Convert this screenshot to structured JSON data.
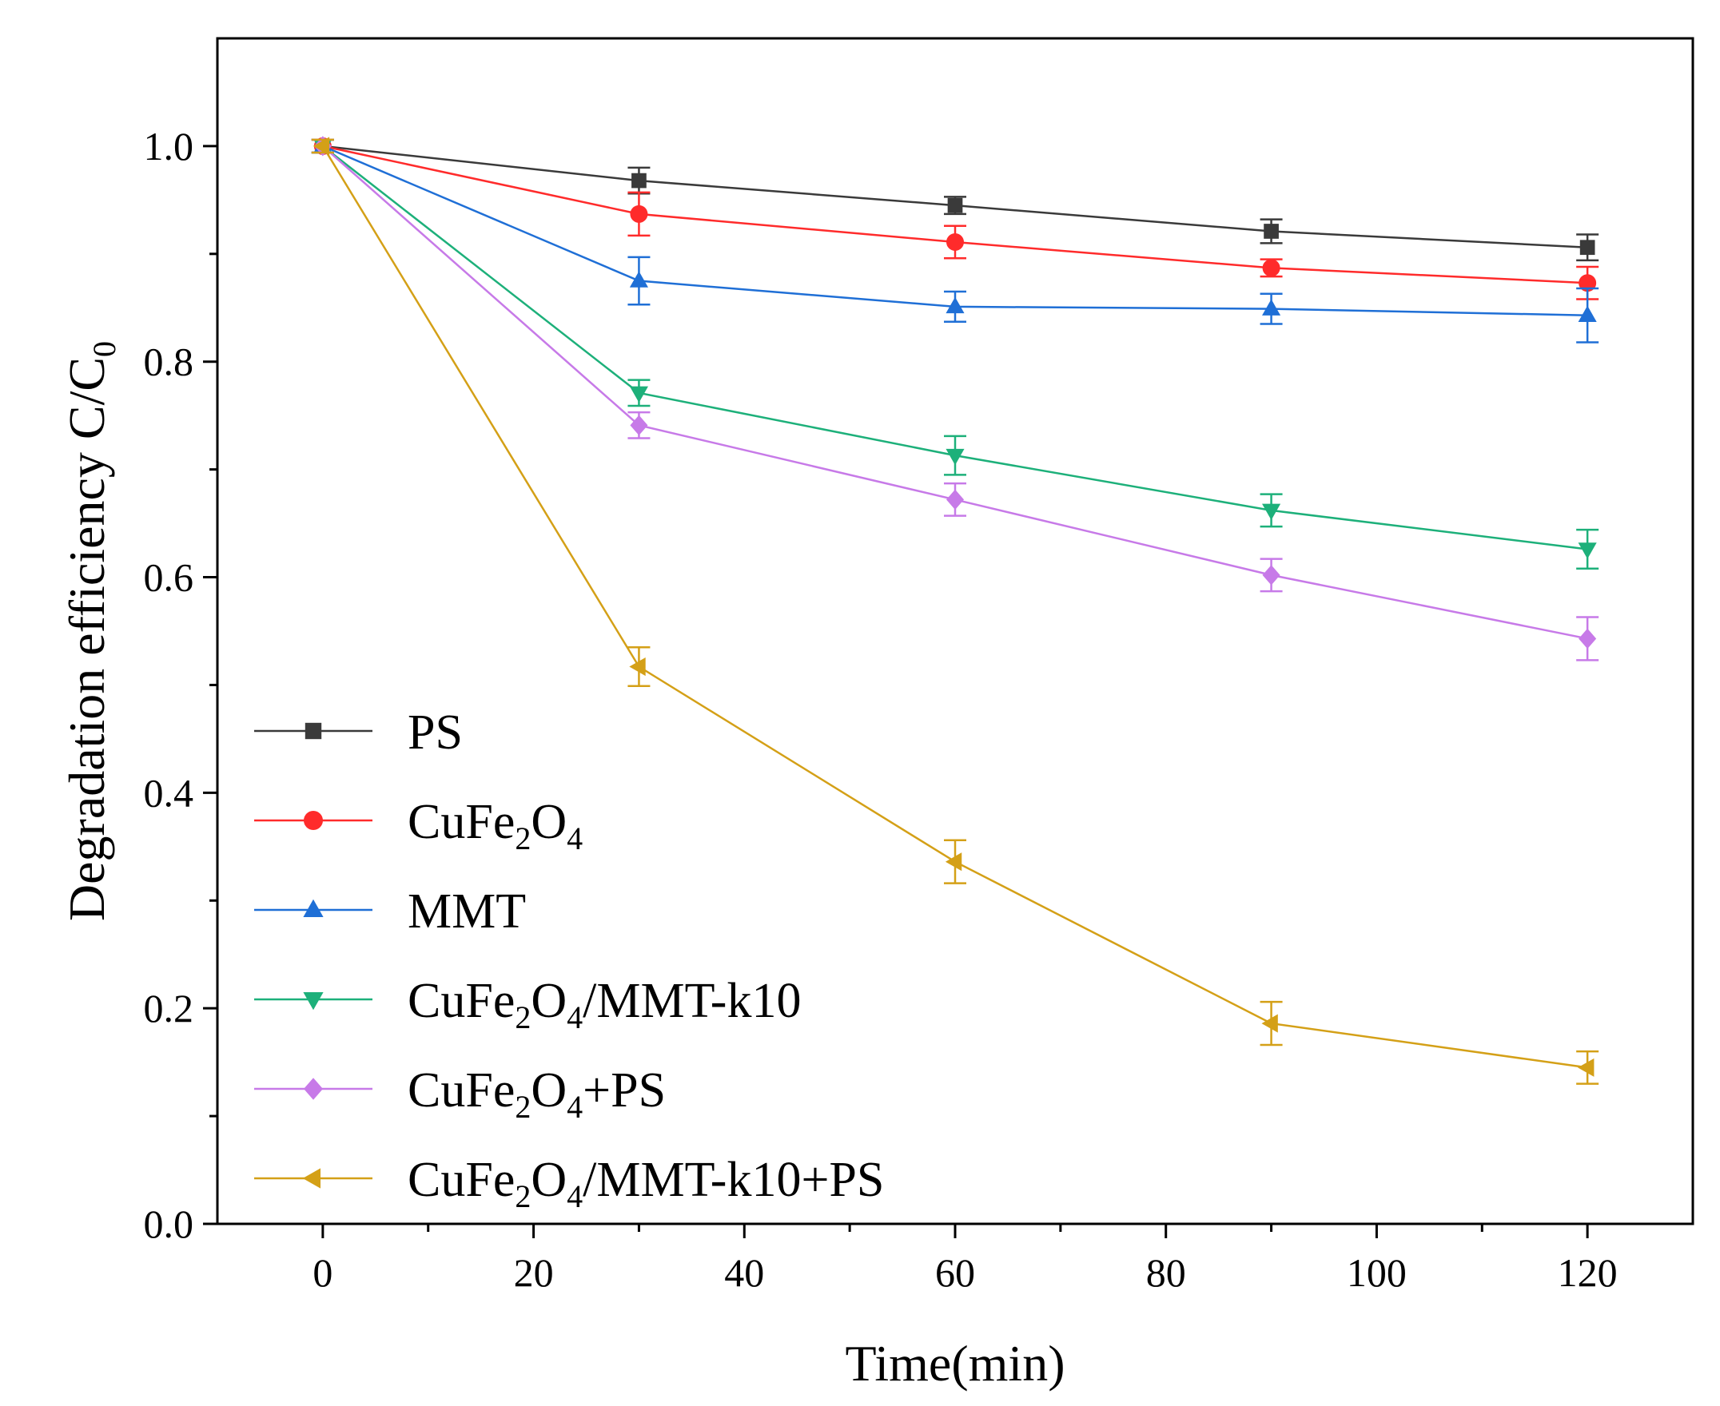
{
  "chart_data": {
    "type": "line",
    "title": "",
    "xlabel": "Time(min)",
    "ylabel_main": "Degradation efficiency C/C",
    "ylabel_sub": "0",
    "xlim": [
      -10,
      130
    ],
    "ylim": [
      0.0,
      1.1
    ],
    "x_ticks": [
      0,
      20,
      40,
      60,
      80,
      100,
      120
    ],
    "x_tick_labels": [
      "0",
      "20",
      "40",
      "60",
      "80",
      "100",
      "120"
    ],
    "x_minor_ticks": [
      10,
      30,
      50,
      70,
      90,
      110
    ],
    "y_ticks": [
      0.0,
      0.2,
      0.4,
      0.6,
      0.8,
      1.0
    ],
    "y_tick_labels": [
      "0.0",
      "0.2",
      "0.4",
      "0.6",
      "0.8",
      "1.0"
    ],
    "y_minor_ticks": [
      0.1,
      0.3,
      0.5,
      0.7,
      0.9
    ],
    "grid": false,
    "legend_position": "lower-left",
    "x": [
      0,
      30,
      60,
      90,
      120
    ],
    "series": [
      {
        "name": "PS",
        "label_parts": [
          {
            "t": "PS"
          }
        ],
        "color": "#3a3a3a",
        "marker": "square",
        "values": [
          1.0,
          0.968,
          0.945,
          0.921,
          0.906
        ],
        "errors": [
          0.006,
          0.012,
          0.008,
          0.011,
          0.012
        ]
      },
      {
        "name": "CuFe2O4",
        "label_parts": [
          {
            "t": "CuFe"
          },
          {
            "t": "2",
            "sub": true
          },
          {
            "t": "O"
          },
          {
            "t": "4",
            "sub": true
          }
        ],
        "color": "#ff2b2b",
        "marker": "circle",
        "values": [
          1.0,
          0.937,
          0.911,
          0.887,
          0.873
        ],
        "errors": [
          0.006,
          0.02,
          0.015,
          0.008,
          0.015
        ]
      },
      {
        "name": "MMT",
        "label_parts": [
          {
            "t": "MMT"
          }
        ],
        "color": "#1f6fd6",
        "marker": "triangle-up",
        "values": [
          1.0,
          0.875,
          0.851,
          0.849,
          0.843
        ],
        "errors": [
          0.006,
          0.022,
          0.014,
          0.014,
          0.025
        ]
      },
      {
        "name": "CuFe2O4/MMT-k10",
        "label_parts": [
          {
            "t": "CuFe"
          },
          {
            "t": "2",
            "sub": true
          },
          {
            "t": "O"
          },
          {
            "t": "4",
            "sub": true
          },
          {
            "t": "/MMT-k10"
          }
        ],
        "color": "#1db07a",
        "marker": "triangle-down",
        "values": [
          1.0,
          0.771,
          0.713,
          0.662,
          0.626
        ],
        "errors": [
          0.006,
          0.012,
          0.018,
          0.015,
          0.018
        ]
      },
      {
        "name": "CuFe2O4+PS",
        "label_parts": [
          {
            "t": "CuFe"
          },
          {
            "t": "2",
            "sub": true
          },
          {
            "t": "O"
          },
          {
            "t": "4",
            "sub": true
          },
          {
            "t": "+PS"
          }
        ],
        "color": "#c77ae8",
        "marker": "diamond",
        "values": [
          1.0,
          0.741,
          0.672,
          0.602,
          0.543
        ],
        "errors": [
          0.006,
          0.012,
          0.015,
          0.015,
          0.02
        ]
      },
      {
        "name": "CuFe2O4/MMT-k10+PS",
        "label_parts": [
          {
            "t": "CuFe"
          },
          {
            "t": "2",
            "sub": true
          },
          {
            "t": "O"
          },
          {
            "t": "4",
            "sub": true
          },
          {
            "t": "/MMT-k10+PS"
          }
        ],
        "color": "#d4a017",
        "marker": "triangle-left",
        "values": [
          1.0,
          0.517,
          0.336,
          0.186,
          0.145
        ],
        "errors": [
          0.006,
          0.018,
          0.02,
          0.02,
          0.015
        ]
      }
    ]
  }
}
